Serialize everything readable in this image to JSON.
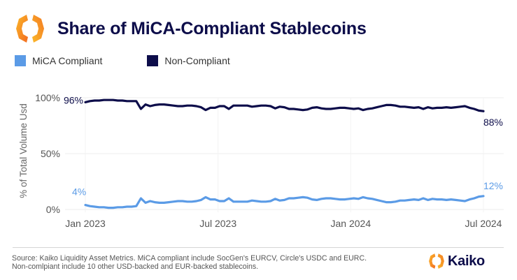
{
  "header": {
    "title": "Share of MiCA-Compliant Stablecoins",
    "logo_icon": "kaiko-hexagon-logo-icon"
  },
  "colors": {
    "mica": "#5b9be6",
    "non_compliant": "#0d0d4a",
    "grid": "#ececec",
    "axis_text": "#555555",
    "logo_yellow": "#fbb829",
    "logo_orange": "#f26b21"
  },
  "footer": {
    "source_line1": "Source: Kaiko Liquidity Asset Metrics. MiCA compliant include SocGen's EURCV, Circle's USDC and EURC.",
    "source_line2": "Non-comlpiant include 10 other USD-backed and EUR-backed stablecoins.",
    "brand": "Kaiko"
  },
  "chart_data": {
    "type": "line",
    "title": "Share of MiCA-Compliant Stablecoins",
    "xlabel": "",
    "ylabel": "% of Total Volume Usd",
    "ylim": [
      0,
      100
    ],
    "yticks": [
      "0%",
      "50%",
      "100%"
    ],
    "ytick_values": [
      0,
      50,
      100
    ],
    "xticks": [
      "Jan 2023",
      "Jul 2023",
      "Jan 2024",
      "Jul 2024"
    ],
    "xtick_week_index": [
      0,
      26,
      52,
      78
    ],
    "x_unit": "weeks since Jan 2023",
    "grid": true,
    "legend": {
      "position": "top-left",
      "entries": [
        "MiCA Compliant",
        "Non-Compliant"
      ]
    },
    "annotations": [
      {
        "series": "Non-Compliant",
        "point": "start",
        "text": "96%"
      },
      {
        "series": "Non-Compliant",
        "point": "end",
        "text": "88%"
      },
      {
        "series": "MiCA Compliant",
        "point": "start",
        "text": "4%"
      },
      {
        "series": "MiCA Compliant",
        "point": "end",
        "text": "12%"
      }
    ],
    "series": [
      {
        "name": "MiCA Compliant",
        "values": [
          4,
          3,
          2.5,
          2,
          2,
          1.5,
          1.5,
          2,
          2,
          2.5,
          2.5,
          3,
          10,
          6,
          7.5,
          6.5,
          6,
          6,
          6.5,
          7,
          7.5,
          7.5,
          7,
          7,
          7.5,
          8.5,
          11,
          9,
          9,
          7.5,
          7.5,
          10,
          7,
          7,
          7,
          7,
          8,
          7.5,
          7,
          7,
          7.5,
          9.5,
          8,
          8.5,
          10,
          10,
          10.5,
          11,
          10.5,
          9,
          8.5,
          9.5,
          10,
          10,
          9.5,
          9,
          9,
          9.5,
          10,
          9.5,
          11,
          10,
          9.5,
          8.5,
          7.5,
          6.5,
          6.5,
          7,
          8,
          8,
          8.5,
          9,
          8.5,
          10,
          8.5,
          9.5,
          9,
          9,
          8.5,
          9,
          8.5,
          8,
          7.5,
          9,
          10,
          11.5,
          12
        ]
      },
      {
        "name": "Non-Compliant",
        "values": [
          96,
          97,
          97.5,
          97.5,
          98,
          98,
          98,
          97.5,
          97.5,
          97,
          97,
          97,
          90,
          94,
          92.5,
          93.5,
          94,
          94,
          93.5,
          93,
          92.5,
          92.5,
          93,
          93,
          92.5,
          91.5,
          89,
          91,
          91,
          92.5,
          92.5,
          90,
          93,
          93,
          93,
          93,
          92,
          92.5,
          93,
          93,
          92.5,
          90.5,
          92,
          91.5,
          90,
          90,
          89.5,
          89,
          89.5,
          91,
          91.5,
          90.5,
          90,
          90,
          90.5,
          91,
          91,
          90.5,
          90,
          90.5,
          89,
          90,
          90.5,
          91.5,
          92.5,
          93.5,
          93.5,
          93,
          92,
          92,
          91.5,
          91,
          91.5,
          90,
          91.5,
          90.5,
          91,
          91,
          91.5,
          91,
          91.5,
          92,
          92.5,
          91,
          90,
          88.5,
          88
        ]
      }
    ]
  }
}
